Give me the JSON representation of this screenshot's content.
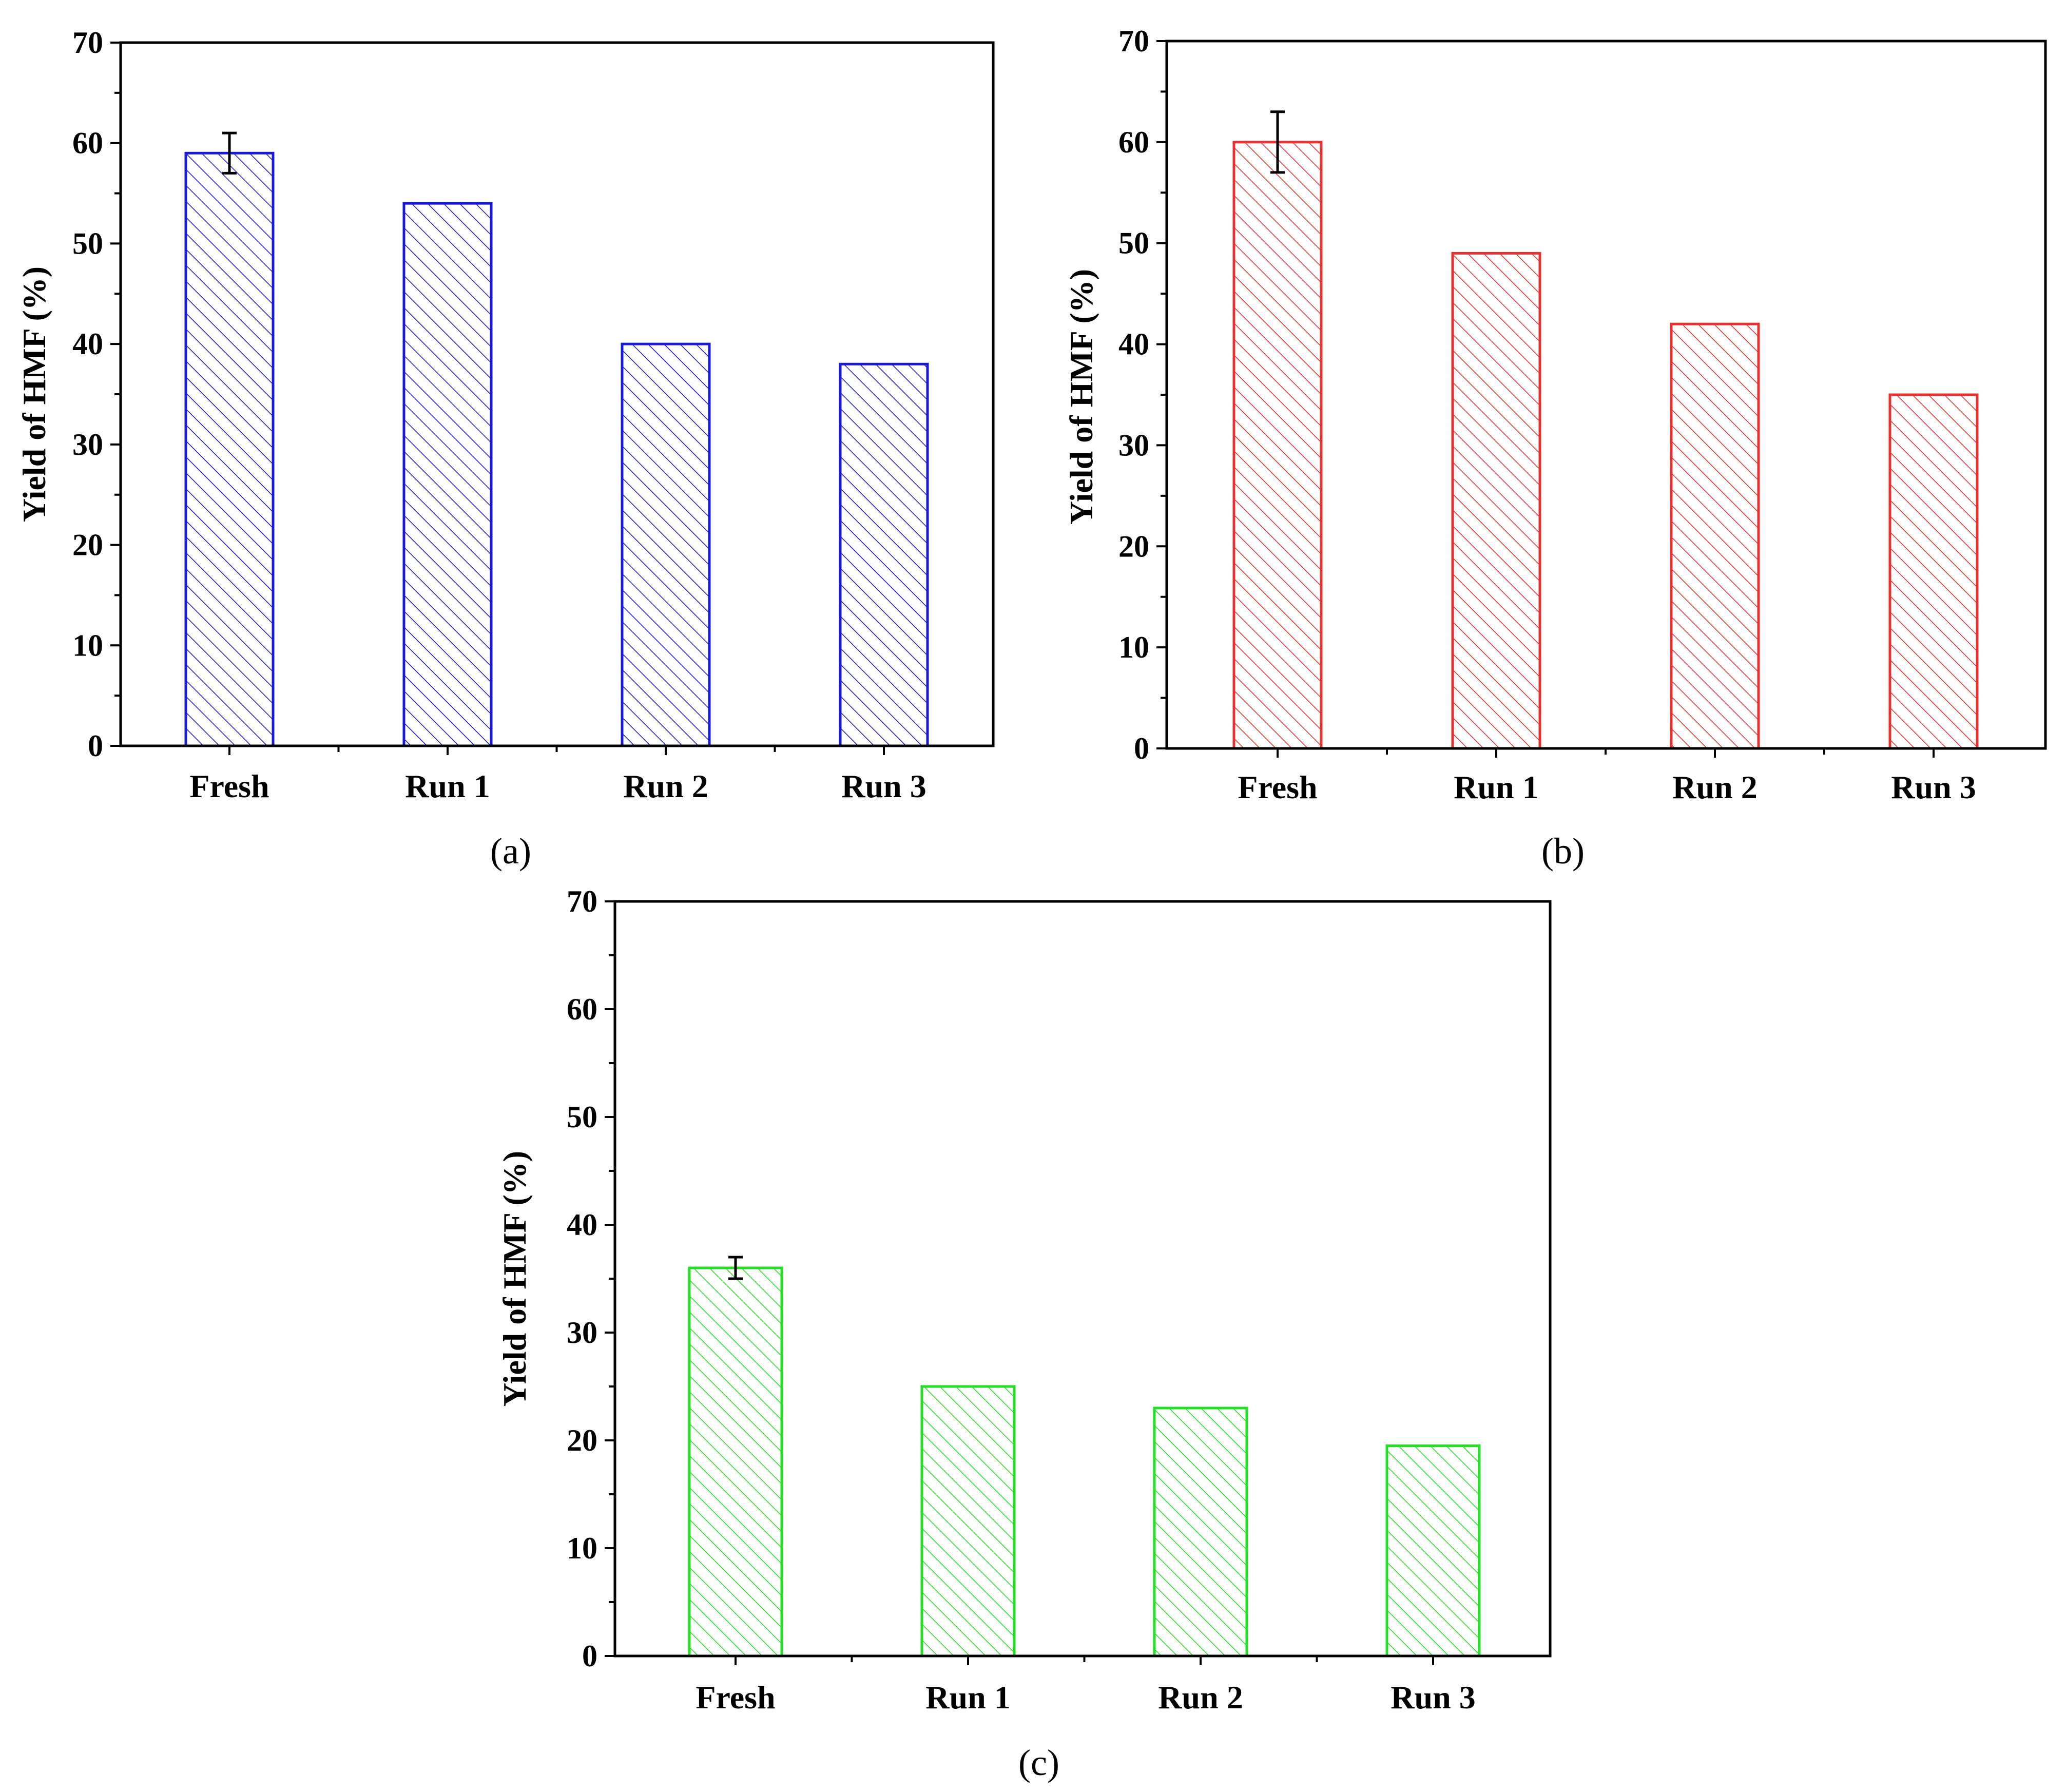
{
  "chart_data": [
    {
      "type": "bar",
      "panel_label": "(a)",
      "categories": [
        "Fresh",
        "Run 1",
        "Run 2",
        "Run 3"
      ],
      "values": [
        59,
        54,
        40,
        38
      ],
      "error": [
        2,
        0,
        0,
        0
      ],
      "ylabel": "Yield of HMF (%)",
      "xlabel": "",
      "ylim": [
        0,
        70
      ],
      "yticks": [
        "0",
        "10",
        "20",
        "30",
        "40",
        "50",
        "60",
        "70"
      ],
      "color": "#1a1ad6",
      "fill": "hatched"
    },
    {
      "type": "bar",
      "panel_label": "(b)",
      "categories": [
        "Fresh",
        "Run 1",
        "Run 2",
        "Run 3"
      ],
      "values": [
        60,
        49,
        42,
        35
      ],
      "error": [
        3,
        0,
        0,
        0
      ],
      "ylabel": "Yield of HMF (%)",
      "xlabel": "",
      "ylim": [
        0,
        70
      ],
      "yticks": [
        "0",
        "10",
        "20",
        "30",
        "40",
        "50",
        "60",
        "70"
      ],
      "color": "#e83030",
      "fill": "hatched"
    },
    {
      "type": "bar",
      "panel_label": "(c)",
      "categories": [
        "Fresh",
        "Run 1",
        "Run 2",
        "Run 3"
      ],
      "values": [
        36,
        25,
        23,
        19.5
      ],
      "error": [
        1,
        0,
        0,
        0
      ],
      "ylabel": "Yield of HMF (%)",
      "xlabel": "",
      "ylim": [
        0,
        70
      ],
      "yticks": [
        "0",
        "10",
        "20",
        "30",
        "40",
        "50",
        "60",
        "70"
      ],
      "color": "#22e022",
      "fill": "hatched"
    }
  ]
}
